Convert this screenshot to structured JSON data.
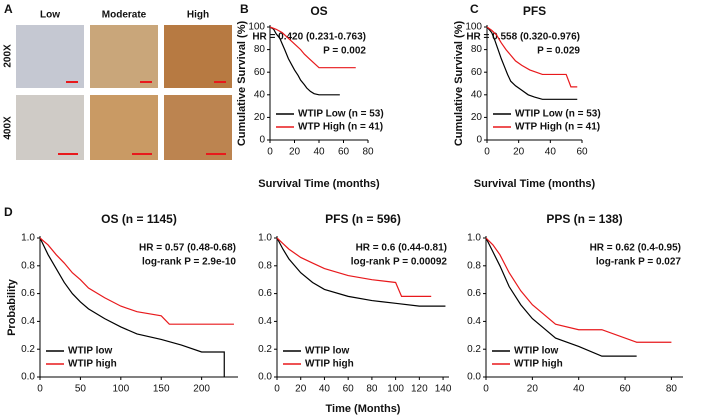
{
  "panel_labels": [
    "A",
    "B",
    "C",
    "D"
  ],
  "ihc": {
    "columns": [
      "Low",
      "Moderate",
      "High"
    ],
    "rows": [
      "200X",
      "400X"
    ]
  },
  "chart_data": [
    {
      "type": "line",
      "title": "OS",
      "xlabel": "Survival Time (months)",
      "ylabel": "Cumulative Survival (%)",
      "xlim": [
        0,
        80
      ],
      "ylim": [
        0,
        100
      ],
      "xticks": [
        0,
        20,
        40,
        60,
        80
      ],
      "yticks": [
        0,
        20,
        40,
        60,
        80,
        100
      ],
      "annotations": [
        "HR = 0.420 (0.231-0.763)",
        "P = 0.002"
      ],
      "legend": "lower left",
      "series": [
        {
          "name": "WTIP Low (n = 53)",
          "color": "#000000",
          "x": [
            0,
            3,
            5,
            8,
            10,
            12,
            15,
            18,
            20,
            23,
            25,
            28,
            30,
            33,
            36,
            40,
            57
          ],
          "values": [
            100,
            98,
            94,
            90,
            85,
            80,
            72,
            66,
            62,
            57,
            53,
            49,
            46,
            43,
            41,
            40,
            40
          ]
        },
        {
          "name": "WTP High (n = 41)",
          "color": "#e8191c",
          "x": [
            0,
            5,
            10,
            15,
            20,
            25,
            28,
            32,
            36,
            40,
            50,
            60,
            70
          ],
          "values": [
            100,
            98,
            95,
            90,
            85,
            80,
            76,
            72,
            68,
            64,
            64,
            64,
            64
          ]
        }
      ]
    },
    {
      "type": "line",
      "title": "PFS",
      "xlabel": "Survival Time (months)",
      "ylabel": "Cumulative Survival (%)",
      "xlim": [
        0,
        60
      ],
      "ylim": [
        0,
        100
      ],
      "xticks": [
        0,
        20,
        40,
        60
      ],
      "yticks": [
        0,
        20,
        40,
        60,
        80,
        100
      ],
      "annotations": [
        "HR = 0.558 (0.320-0.976)",
        "P = 0.029"
      ],
      "legend": "lower left",
      "series": [
        {
          "name": "WTIP Low (n = 53)",
          "color": "#000000",
          "x": [
            0,
            3,
            5,
            7,
            9,
            11,
            13,
            15,
            18,
            22,
            26,
            30,
            35,
            45,
            57
          ],
          "values": [
            100,
            95,
            88,
            80,
            72,
            65,
            58,
            52,
            48,
            44,
            40,
            38,
            36,
            36,
            36
          ]
        },
        {
          "name": "WTP High (n = 41)",
          "color": "#e8191c",
          "x": [
            0,
            3,
            6,
            9,
            12,
            15,
            18,
            22,
            27,
            35,
            45,
            50,
            53,
            57
          ],
          "values": [
            100,
            97,
            93,
            86,
            80,
            75,
            70,
            66,
            62,
            58,
            58,
            58,
            47,
            47
          ]
        }
      ]
    },
    {
      "type": "line",
      "title": "OS (n = 1145)",
      "ylabel": "Probability",
      "xlim": [
        0,
        245
      ],
      "ylim": [
        0,
        1
      ],
      "xticks": [
        0,
        50,
        100,
        150,
        200
      ],
      "yticks": [
        {
          "value": 0,
          "label": "0.0"
        },
        0.2,
        0.4,
        0.6,
        0.8,
        {
          "value": 1,
          "label": "1.0"
        }
      ],
      "annotations": [
        "HR = 0.57 (0.48-0.68)",
        "log-rank P = 2.9e-10"
      ],
      "legend": "lower left",
      "series": [
        {
          "name": "WTIP low",
          "color": "#000000",
          "x": [
            0,
            10,
            20,
            30,
            40,
            50,
            60,
            80,
            100,
            120,
            150,
            175,
            200,
            228,
            228
          ],
          "values": [
            1,
            0.88,
            0.78,
            0.68,
            0.6,
            0.54,
            0.49,
            0.42,
            0.36,
            0.31,
            0.27,
            0.23,
            0.18,
            0.18,
            0
          ]
        },
        {
          "name": "WTIP high",
          "color": "#e8191c",
          "x": [
            0,
            10,
            20,
            30,
            40,
            50,
            60,
            80,
            100,
            120,
            150,
            160,
            240
          ],
          "values": [
            1,
            0.95,
            0.88,
            0.82,
            0.75,
            0.7,
            0.64,
            0.57,
            0.51,
            0.47,
            0.44,
            0.38,
            0.38
          ]
        }
      ]
    },
    {
      "type": "line",
      "title": "PFS (n = 596)",
      "xlabel": "Time (Months)",
      "xlim": [
        0,
        145
      ],
      "ylim": [
        0,
        1
      ],
      "xticks": [
        0,
        20,
        40,
        60,
        80,
        100,
        120,
        140
      ],
      "yticks": [
        {
          "value": 0,
          "label": "0.0"
        },
        0.2,
        0.4,
        0.6,
        0.8,
        {
          "value": 1,
          "label": "1.0"
        }
      ],
      "annotations": [
        "HR = 0.6 (0.44-0.81)",
        "log-rank P = 0.00092"
      ],
      "legend": "lower left",
      "series": [
        {
          "name": "WTIP low",
          "color": "#000000",
          "x": [
            0,
            5,
            10,
            20,
            30,
            40,
            60,
            80,
            100,
            120,
            142
          ],
          "values": [
            1,
            0.92,
            0.85,
            0.75,
            0.68,
            0.63,
            0.58,
            0.55,
            0.53,
            0.51,
            0.51
          ]
        },
        {
          "name": "WTIP high",
          "color": "#e8191c",
          "x": [
            0,
            5,
            10,
            20,
            30,
            40,
            60,
            80,
            100,
            105,
            130
          ],
          "values": [
            1,
            0.96,
            0.92,
            0.86,
            0.82,
            0.78,
            0.73,
            0.7,
            0.68,
            0.58,
            0.58
          ]
        }
      ]
    },
    {
      "type": "line",
      "title": "PPS (n = 138)",
      "xlim": [
        0,
        85
      ],
      "ylim": [
        0,
        1
      ],
      "xticks": [
        0,
        20,
        40,
        60,
        80
      ],
      "yticks": [
        {
          "value": 0,
          "label": "0.0"
        },
        0.2,
        0.4,
        0.6,
        0.8,
        {
          "value": 1,
          "label": "1.0"
        }
      ],
      "annotations": [
        "HR = 0.62 (0.4-0.95)",
        "log-rank P = 0.027"
      ],
      "legend": "lower left",
      "series": [
        {
          "name": "WTIP low",
          "color": "#000000",
          "x": [
            0,
            3,
            6,
            10,
            15,
            20,
            25,
            30,
            40,
            50,
            65
          ],
          "values": [
            1,
            0.9,
            0.8,
            0.65,
            0.52,
            0.42,
            0.35,
            0.28,
            0.22,
            0.15,
            0.15
          ]
        },
        {
          "name": "WTIP high",
          "color": "#e8191c",
          "x": [
            0,
            3,
            6,
            10,
            15,
            20,
            25,
            30,
            40,
            50,
            65,
            80
          ],
          "values": [
            1,
            0.95,
            0.88,
            0.75,
            0.62,
            0.52,
            0.45,
            0.38,
            0.34,
            0.34,
            0.25,
            0.25
          ]
        }
      ]
    }
  ]
}
